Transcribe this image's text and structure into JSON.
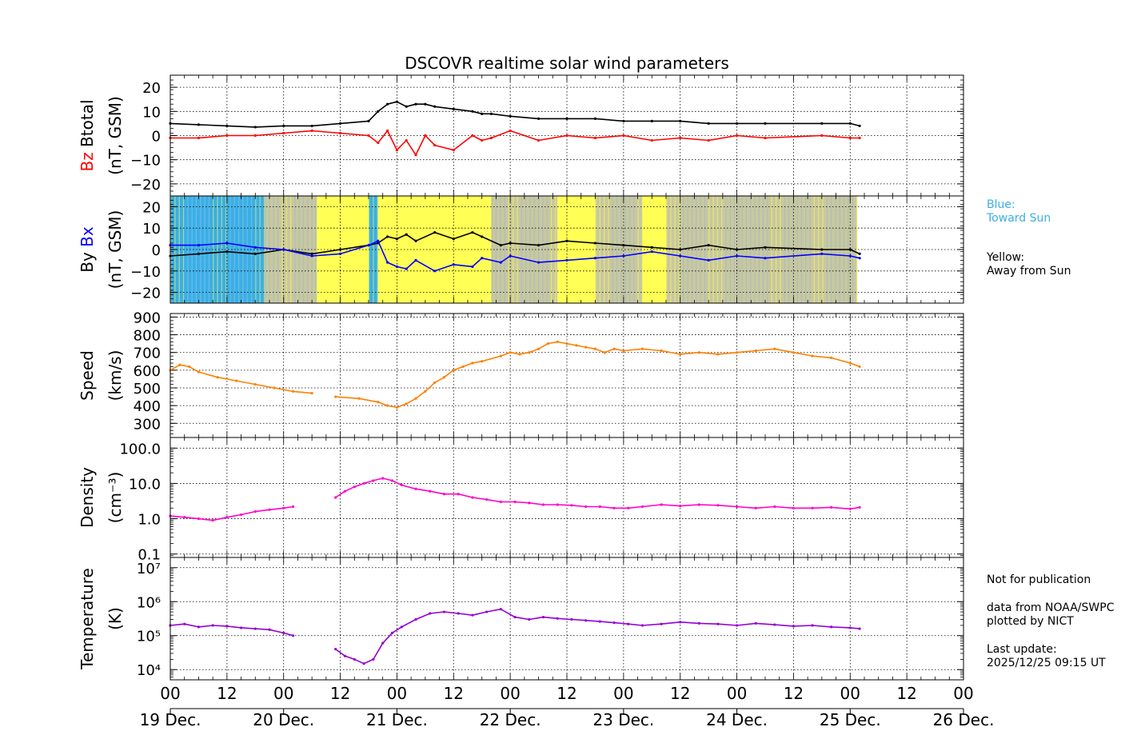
{
  "chart_data": [
    {
      "type": "line",
      "title": "DSCOVR realtime solar wind parameters",
      "panel": "magnetic field magnitude and Bz",
      "ylabel_parts": [
        "Bz",
        "Btotal"
      ],
      "ylabel_units": "(nT, GSM)",
      "ylim": [
        -25,
        25
      ],
      "yticks": [
        -20,
        -10,
        0,
        10,
        20
      ],
      "ytick_labels": [
        "−20",
        "−10",
        "0",
        "10",
        "20"
      ],
      "grid": true,
      "series": [
        {
          "name": "Btotal",
          "color": "#000000",
          "x": [
            0,
            6,
            12,
            18,
            24,
            30,
            36,
            42,
            44,
            46,
            48,
            50,
            52,
            54,
            56,
            60,
            64,
            66,
            68,
            72,
            78,
            84,
            90,
            96,
            102,
            108,
            114,
            120,
            126,
            138,
            144,
            146
          ],
          "y": [
            5,
            4.5,
            4,
            3.5,
            4,
            4,
            5,
            6,
            10,
            13,
            14,
            12,
            13,
            13,
            12,
            11,
            10,
            9,
            9,
            8,
            7,
            7,
            7,
            6,
            6,
            6,
            5,
            5,
            5,
            5,
            5,
            4
          ]
        },
        {
          "name": "Bz",
          "color": "#ff0000",
          "x": [
            0,
            6,
            12,
            18,
            24,
            30,
            36,
            42,
            44,
            46,
            48,
            50,
            52,
            54,
            56,
            60,
            64,
            66,
            68,
            72,
            78,
            84,
            90,
            96,
            102,
            108,
            114,
            120,
            126,
            138,
            144,
            146
          ],
          "y": [
            -1,
            -1,
            0,
            0,
            1,
            2,
            1,
            0,
            -3,
            2,
            -6,
            -2,
            -8,
            0,
            -4,
            -6,
            0,
            -2,
            -1,
            2,
            -2,
            0,
            -1,
            0,
            -2,
            -1,
            -2,
            0,
            -1,
            0,
            -1,
            -1
          ]
        }
      ]
    },
    {
      "type": "line",
      "panel": "By and Bx with sector background",
      "ylabel_parts": [
        "By",
        "Bx"
      ],
      "ylabel_units": "(nT, GSM)",
      "ylim": [
        -25,
        25
      ],
      "yticks": [
        -20,
        -10,
        0,
        10,
        20
      ],
      "ytick_labels": [
        "−20",
        "−10",
        "0",
        "10",
        "20"
      ],
      "grid": true,
      "sector_colors": {
        "toward": "#3baee6",
        "away": "#ffff55",
        "mixed": "#c8c8a0"
      },
      "sectors": [
        {
          "start": 0,
          "end": 20,
          "sector": "toward"
        },
        {
          "start": 20,
          "end": 31,
          "sector": "mixed"
        },
        {
          "start": 31,
          "end": 42,
          "sector": "away"
        },
        {
          "start": 42,
          "end": 44,
          "sector": "toward"
        },
        {
          "start": 44,
          "end": 68,
          "sector": "away"
        },
        {
          "start": 68,
          "end": 82,
          "sector": "mixed"
        },
        {
          "start": 82,
          "end": 90,
          "sector": "away"
        },
        {
          "start": 90,
          "end": 100,
          "sector": "mixed"
        },
        {
          "start": 100,
          "end": 105,
          "sector": "away"
        },
        {
          "start": 105,
          "end": 121,
          "sector": "mixed"
        },
        {
          "start": 121,
          "end": 145.5,
          "sector": "mixed"
        }
      ],
      "series": [
        {
          "name": "By",
          "color": "#000000",
          "x": [
            0,
            6,
            12,
            18,
            24,
            30,
            36,
            42,
            44,
            46,
            48,
            50,
            52,
            56,
            60,
            64,
            66,
            70,
            72,
            78,
            84,
            90,
            96,
            102,
            108,
            114,
            120,
            126,
            138,
            144,
            146
          ],
          "y": [
            -3,
            -2,
            -1,
            -2,
            0,
            -2,
            0,
            2,
            3,
            6,
            5,
            7,
            4,
            8,
            5,
            8,
            6,
            2,
            3,
            2,
            4,
            3,
            2,
            1,
            0,
            2,
            0,
            1,
            0,
            0,
            -2
          ]
        },
        {
          "name": "Bx",
          "color": "#0000ff",
          "x": [
            0,
            6,
            12,
            18,
            24,
            30,
            36,
            42,
            44,
            46,
            48,
            50,
            52,
            56,
            60,
            64,
            66,
            70,
            72,
            78,
            84,
            90,
            96,
            102,
            108,
            114,
            120,
            126,
            138,
            144,
            146
          ],
          "y": [
            2,
            2,
            3,
            1,
            0,
            -3,
            -2,
            2,
            4,
            -6,
            -8,
            -9,
            -5,
            -10,
            -7,
            -8,
            -4,
            -6,
            -3,
            -6,
            -5,
            -4,
            -3,
            -1,
            -3,
            -5,
            -3,
            -4,
            -2,
            -3,
            -4
          ]
        }
      ]
    },
    {
      "type": "line",
      "panel": "speed",
      "ylabel_parts": [
        "Speed",
        "(km/s)"
      ],
      "ylim": [
        220,
        920
      ],
      "yticks": [
        300,
        400,
        500,
        600,
        700,
        800,
        900
      ],
      "ytick_labels": [
        "300",
        "400",
        "500",
        "600",
        "700",
        "800",
        "900"
      ],
      "grid": true,
      "series": [
        {
          "name": "Speed",
          "color": "#ff8000",
          "segments": [
            {
              "x": [
                0,
                2,
                4,
                6,
                10,
                14,
                18,
                22,
                26,
                30
              ],
              "y": [
                600,
                630,
                620,
                590,
                560,
                540,
                520,
                500,
                480,
                470
              ]
            },
            {
              "x": [
                35,
                40,
                44,
                46,
                48,
                50,
                52,
                54,
                56,
                58,
                60,
                62,
                64,
                66,
                70,
                72,
                74,
                76,
                78,
                80,
                82,
                84,
                86,
                88,
                90,
                92,
                94,
                96,
                100,
                104,
                108,
                112,
                116,
                120,
                124,
                128,
                132,
                136,
                140,
                144,
                146
              ],
              "y": [
                450,
                440,
                420,
                400,
                390,
                410,
                440,
                480,
                530,
                560,
                600,
                620,
                640,
                650,
                680,
                700,
                690,
                700,
                720,
                750,
                760,
                750,
                740,
                730,
                720,
                700,
                720,
                710,
                720,
                710,
                690,
                700,
                690,
                700,
                710,
                720,
                700,
                680,
                670,
                640,
                620
              ]
            }
          ]
        }
      ]
    },
    {
      "type": "line",
      "panel": "density",
      "ylabel_parts": [
        "Density",
        "(cm⁻³)"
      ],
      "yscale": "log",
      "ylim": [
        0.08,
        200
      ],
      "yticks": [
        0.1,
        1.0,
        10.0,
        100.0
      ],
      "ytick_labels": [
        "0.1",
        "1.0",
        "10.0",
        "100.0"
      ],
      "grid": true,
      "series": [
        {
          "name": "Density",
          "color": "#ff00cc",
          "segments": [
            {
              "x": [
                0,
                3,
                6,
                9,
                12,
                15,
                18,
                21,
                24,
                26
              ],
              "y": [
                1.2,
                1.1,
                1.0,
                0.9,
                1.1,
                1.3,
                1.6,
                1.8,
                2.0,
                2.2
              ]
            },
            {
              "x": [
                35,
                37,
                39,
                41,
                43,
                45,
                47,
                49,
                52,
                55,
                58,
                61,
                64,
                67,
                70,
                73,
                76,
                79,
                82,
                85,
                88,
                91,
                94,
                97,
                100,
                104,
                108,
                112,
                116,
                120,
                124,
                128,
                132,
                136,
                140,
                144,
                146
              ],
              "y": [
                4,
                6,
                8,
                10,
                12,
                14,
                12,
                9,
                7,
                6,
                5,
                5,
                4,
                3.5,
                3,
                3,
                2.8,
                2.5,
                2.5,
                2.4,
                2.2,
                2.2,
                2.0,
                2.0,
                2.2,
                2.5,
                2.3,
                2.5,
                2.4,
                2.2,
                2.0,
                2.2,
                2.0,
                2.0,
                2.1,
                1.9,
                2.1
              ]
            }
          ]
        }
      ]
    },
    {
      "type": "line",
      "panel": "temperature",
      "ylabel_parts": [
        "Temperature",
        "(K)"
      ],
      "yscale": "log",
      "ylim": [
        5000,
        20000000
      ],
      "yticks": [
        10000,
        100000,
        1000000,
        10000000
      ],
      "ytick_labels": [
        "10⁴",
        "10⁵",
        "10⁶",
        "10⁷"
      ],
      "grid": true,
      "series": [
        {
          "name": "Temperature",
          "color": "#9400d3",
          "segments": [
            {
              "x": [
                0,
                3,
                6,
                9,
                12,
                15,
                18,
                21,
                24,
                26
              ],
              "y": [
                200000,
                220000,
                180000,
                200000,
                190000,
                170000,
                160000,
                150000,
                120000,
                100000
              ]
            },
            {
              "x": [
                35,
                37,
                39,
                41,
                43,
                45,
                47,
                49,
                52,
                55,
                58,
                61,
                64,
                67,
                70,
                73,
                76,
                79,
                82,
                85,
                88,
                91,
                94,
                97,
                100,
                104,
                108,
                112,
                116,
                120,
                124,
                128,
                132,
                136,
                140,
                144,
                146
              ],
              "y": [
                40000,
                25000,
                20000,
                15000,
                20000,
                60000,
                120000,
                180000,
                300000,
                450000,
                500000,
                450000,
                400000,
                500000,
                600000,
                350000,
                300000,
                350000,
                320000,
                300000,
                280000,
                260000,
                240000,
                220000,
                200000,
                220000,
                250000,
                230000,
                220000,
                200000,
                230000,
                210000,
                190000,
                200000,
                180000,
                170000,
                160000
              ]
            }
          ]
        }
      ]
    }
  ],
  "time_axis": {
    "range_hours": [
      0,
      168
    ],
    "ticks_hours": [
      0,
      12,
      24,
      36,
      48,
      60,
      72,
      84,
      96,
      108,
      120,
      132,
      144,
      156,
      168
    ],
    "hour_labels": [
      "00",
      "12",
      "00",
      "12",
      "00",
      "12",
      "00",
      "12",
      "00",
      "12",
      "00",
      "12",
      "00",
      "12",
      "00"
    ],
    "day_labels": [
      "19 Dec.",
      "20 Dec.",
      "21 Dec.",
      "22 Dec.",
      "23 Dec.",
      "24 Dec.",
      "25 Dec.",
      "26 Dec."
    ]
  },
  "legend": {
    "blue_label": "Blue:",
    "blue_text": "Toward Sun",
    "blue_color": "#3baee6",
    "yellow_label": "Yellow:",
    "yellow_text": "Away from Sun"
  },
  "notes": {
    "publication": "Not for publication",
    "source": "data from NOAA/SWPC",
    "plotted_by": "plotted by NICT",
    "last_update_label": "Last update:",
    "last_update_value": "2025/12/25 09:15 UT"
  }
}
